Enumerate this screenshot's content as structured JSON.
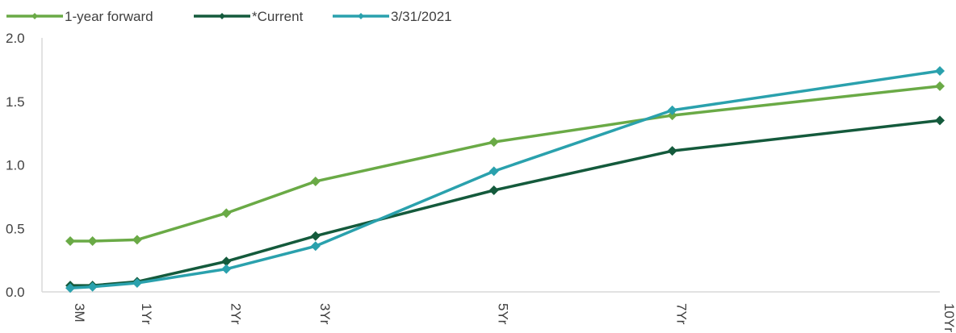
{
  "chart_data": {
    "type": "line",
    "title": "",
    "xlabel": "",
    "ylabel": "",
    "ylim": [
      0,
      2.0
    ],
    "yticks": [
      "0.0",
      "0.5",
      "1.0",
      "1.5",
      "2.0"
    ],
    "x": [
      0.25,
      0.5,
      1,
      2,
      3,
      5,
      7,
      10
    ],
    "tick_labels": [
      {
        "x": 0.25,
        "label": "3M"
      },
      {
        "x": 1,
        "label": "1Yr"
      },
      {
        "x": 2,
        "label": "2Yr"
      },
      {
        "x": 3,
        "label": "3Yr"
      },
      {
        "x": 5,
        "label": "5Yr"
      },
      {
        "x": 7,
        "label": "7Yr"
      },
      {
        "x": 10,
        "label": "10Yr"
      }
    ],
    "legend_position": "top-left",
    "grid": false,
    "series": [
      {
        "name": "1-year forward",
        "color": "#6aaa46",
        "values": [
          0.4,
          0.4,
          0.41,
          0.62,
          0.87,
          1.18,
          1.39,
          1.62
        ]
      },
      {
        "name": "*Current",
        "color": "#145a3c",
        "values": [
          0.05,
          0.05,
          0.08,
          0.24,
          0.44,
          0.8,
          1.11,
          1.35
        ]
      },
      {
        "name": "3/31/2021",
        "color": "#2aa1ad",
        "values": [
          0.03,
          0.04,
          0.07,
          0.18,
          0.36,
          0.95,
          1.43,
          1.74
        ]
      }
    ]
  }
}
